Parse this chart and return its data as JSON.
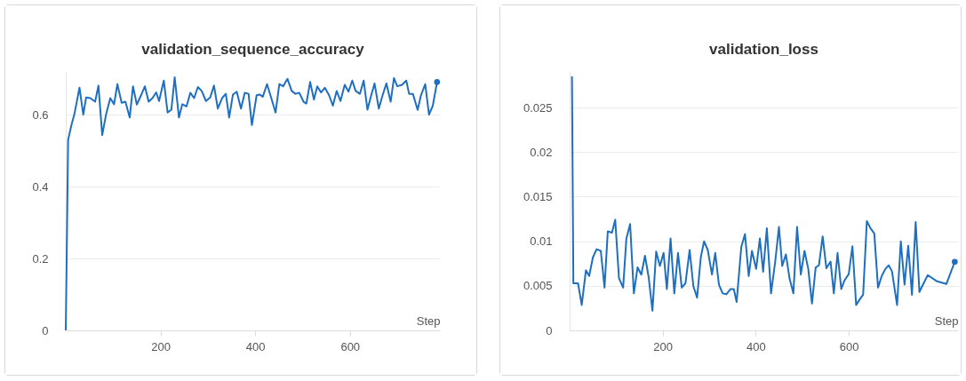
{
  "chart_data": [
    {
      "type": "line",
      "title": "validation_sequence_accuracy",
      "xlabel": "Step",
      "xlim": [
        0,
        790
      ],
      "ylim": [
        0,
        0.72
      ],
      "xticks": [
        200,
        400,
        600
      ],
      "yticks": [
        0,
        0.2,
        0.4,
        0.6
      ],
      "grid": "y",
      "x": [
        0,
        5,
        12,
        18,
        29,
        37,
        43,
        52,
        62,
        69,
        77,
        85,
        94,
        102,
        109,
        118,
        126,
        135,
        142,
        150,
        159,
        167,
        175,
        183,
        191,
        197,
        207,
        215,
        223,
        230,
        239,
        246,
        255,
        263,
        271,
        279,
        287,
        296,
        305,
        313,
        321,
        330,
        338,
        345,
        353,
        361,
        370,
        378,
        386,
        393,
        403,
        409,
        416,
        425,
        434,
        443,
        451,
        459,
        468,
        477,
        485,
        493,
        502,
        508,
        516,
        524,
        531,
        539,
        547,
        556,
        564,
        572,
        580,
        589,
        597,
        605,
        612,
        621,
        629,
        637,
        645,
        652,
        661,
        669,
        677,
        686,
        693,
        700,
        710,
        719,
        725,
        733,
        743,
        750,
        759,
        767,
        775,
        784
      ],
      "series": [
        {
          "color": "#1f6fc0",
          "values": [
            0,
            0.531,
            0.572,
            0.601,
            0.676,
            0.601,
            0.649,
            0.647,
            0.637,
            0.682,
            0.544,
            0.601,
            0.647,
            0.63,
            0.686,
            0.634,
            0.637,
            0.593,
            0.68,
            0.629,
            0.655,
            0.68,
            0.637,
            0.647,
            0.663,
            0.639,
            0.696,
            0.607,
            0.615,
            0.705,
            0.593,
            0.63,
            0.624,
            0.662,
            0.647,
            0.678,
            0.667,
            0.639,
            0.649,
            0.682,
            0.618,
            0.647,
            0.659,
            0.593,
            0.657,
            0.665,
            0.618,
            0.662,
            0.659,
            0.572,
            0.655,
            0.657,
            0.651,
            0.686,
            0.647,
            0.607,
            0.686,
            0.68,
            0.701,
            0.667,
            0.659,
            0.662,
            0.637,
            0.632,
            0.692,
            0.643,
            0.68,
            0.663,
            0.676,
            0.655,
            0.626,
            0.667,
            0.639,
            0.684,
            0.665,
            0.696,
            0.667,
            0.659,
            0.696,
            0.615,
            0.655,
            0.688,
            0.618,
            0.655,
            0.688,
            0.637,
            0.703,
            0.68,
            0.684,
            0.696,
            0.659,
            0.659,
            0.614,
            0.655,
            0.686,
            0.601,
            0.626,
            0.692
          ]
        }
      ]
    },
    {
      "type": "line",
      "title": "validation_loss",
      "xlabel": "Step",
      "xlim": [
        0,
        835
      ],
      "ylim": [
        0,
        0.029
      ],
      "xticks": [
        200,
        400,
        600
      ],
      "yticks": [
        0,
        0.005,
        0.01,
        0.015,
        0.02,
        0.025
      ],
      "grid": "y",
      "x": [
        5,
        8,
        18,
        26,
        35,
        42,
        50,
        58,
        67,
        75,
        82,
        91,
        98,
        106,
        115,
        122,
        130,
        138,
        146,
        154,
        162,
        170,
        178,
        186,
        194,
        202,
        209,
        217,
        225,
        233,
        241,
        249,
        258,
        266,
        274,
        282,
        289,
        297,
        306,
        313,
        321,
        329,
        337,
        346,
        353,
        359,
        369,
        377,
        385,
        392,
        401,
        409,
        416,
        424,
        433,
        442,
        450,
        457,
        465,
        473,
        481,
        489,
        497,
        505,
        513,
        521,
        529,
        536,
        544,
        552,
        561,
        568,
        576,
        584,
        591,
        600,
        608,
        616,
        624,
        631,
        639,
        647,
        655,
        663,
        671,
        679,
        686,
        693,
        704,
        712,
        720,
        728,
        736,
        744,
        752,
        758,
        770,
        790,
        810,
        828
      ],
      "series": [
        {
          "color": "#1f6fc0",
          "values": [
            0.0285,
            0.00528,
            0.00528,
            0.00285,
            0.00674,
            0.0061,
            0.0082,
            0.00911,
            0.00892,
            0.0048,
            0.01112,
            0.01096,
            0.01242,
            0.00587,
            0.0048,
            0.01031,
            0.01193,
            0.00415,
            0.00707,
            0.00626,
            0.00837,
            0.00593,
            0.00221,
            0.00885,
            0.00723,
            0.00869,
            0.00464,
            0.01031,
            0.00415,
            0.00869,
            0.0048,
            0.00528,
            0.00902,
            0.00496,
            0.00367,
            0.0082,
            0.00999,
            0.00902,
            0.00626,
            0.00869,
            0.00513,
            0.00415,
            0.00406,
            0.00464,
            0.00464,
            0.00318,
            0.00934,
            0.0108,
            0.0061,
            0.00892,
            0.00691,
            0.01031,
            0.00658,
            0.01145,
            0.00415,
            0.00772,
            0.0116,
            0.00723,
            0.00853,
            0.00577,
            0.00415,
            0.0116,
            0.00626,
            0.00892,
            0.00691,
            0.00302,
            0.00707,
            0.0073,
            0.01054,
            0.00697,
            0.00772,
            0.00415,
            0.00869,
            0.00464,
            0.00561,
            0.00632,
            0.00944,
            0.00285,
            0.0035,
            0.00399,
            0.01226,
            0.01145,
            0.01087,
            0.0048,
            0.0061,
            0.00691,
            0.0073,
            0.00664,
            0.00285,
            0.00999,
            0.00513,
            0.0095,
            0.00399,
            0.01216,
            0.00431,
            0.00496,
            0.0062,
            0.0055,
            0.0052,
            0.0077
          ]
        }
      ]
    }
  ]
}
